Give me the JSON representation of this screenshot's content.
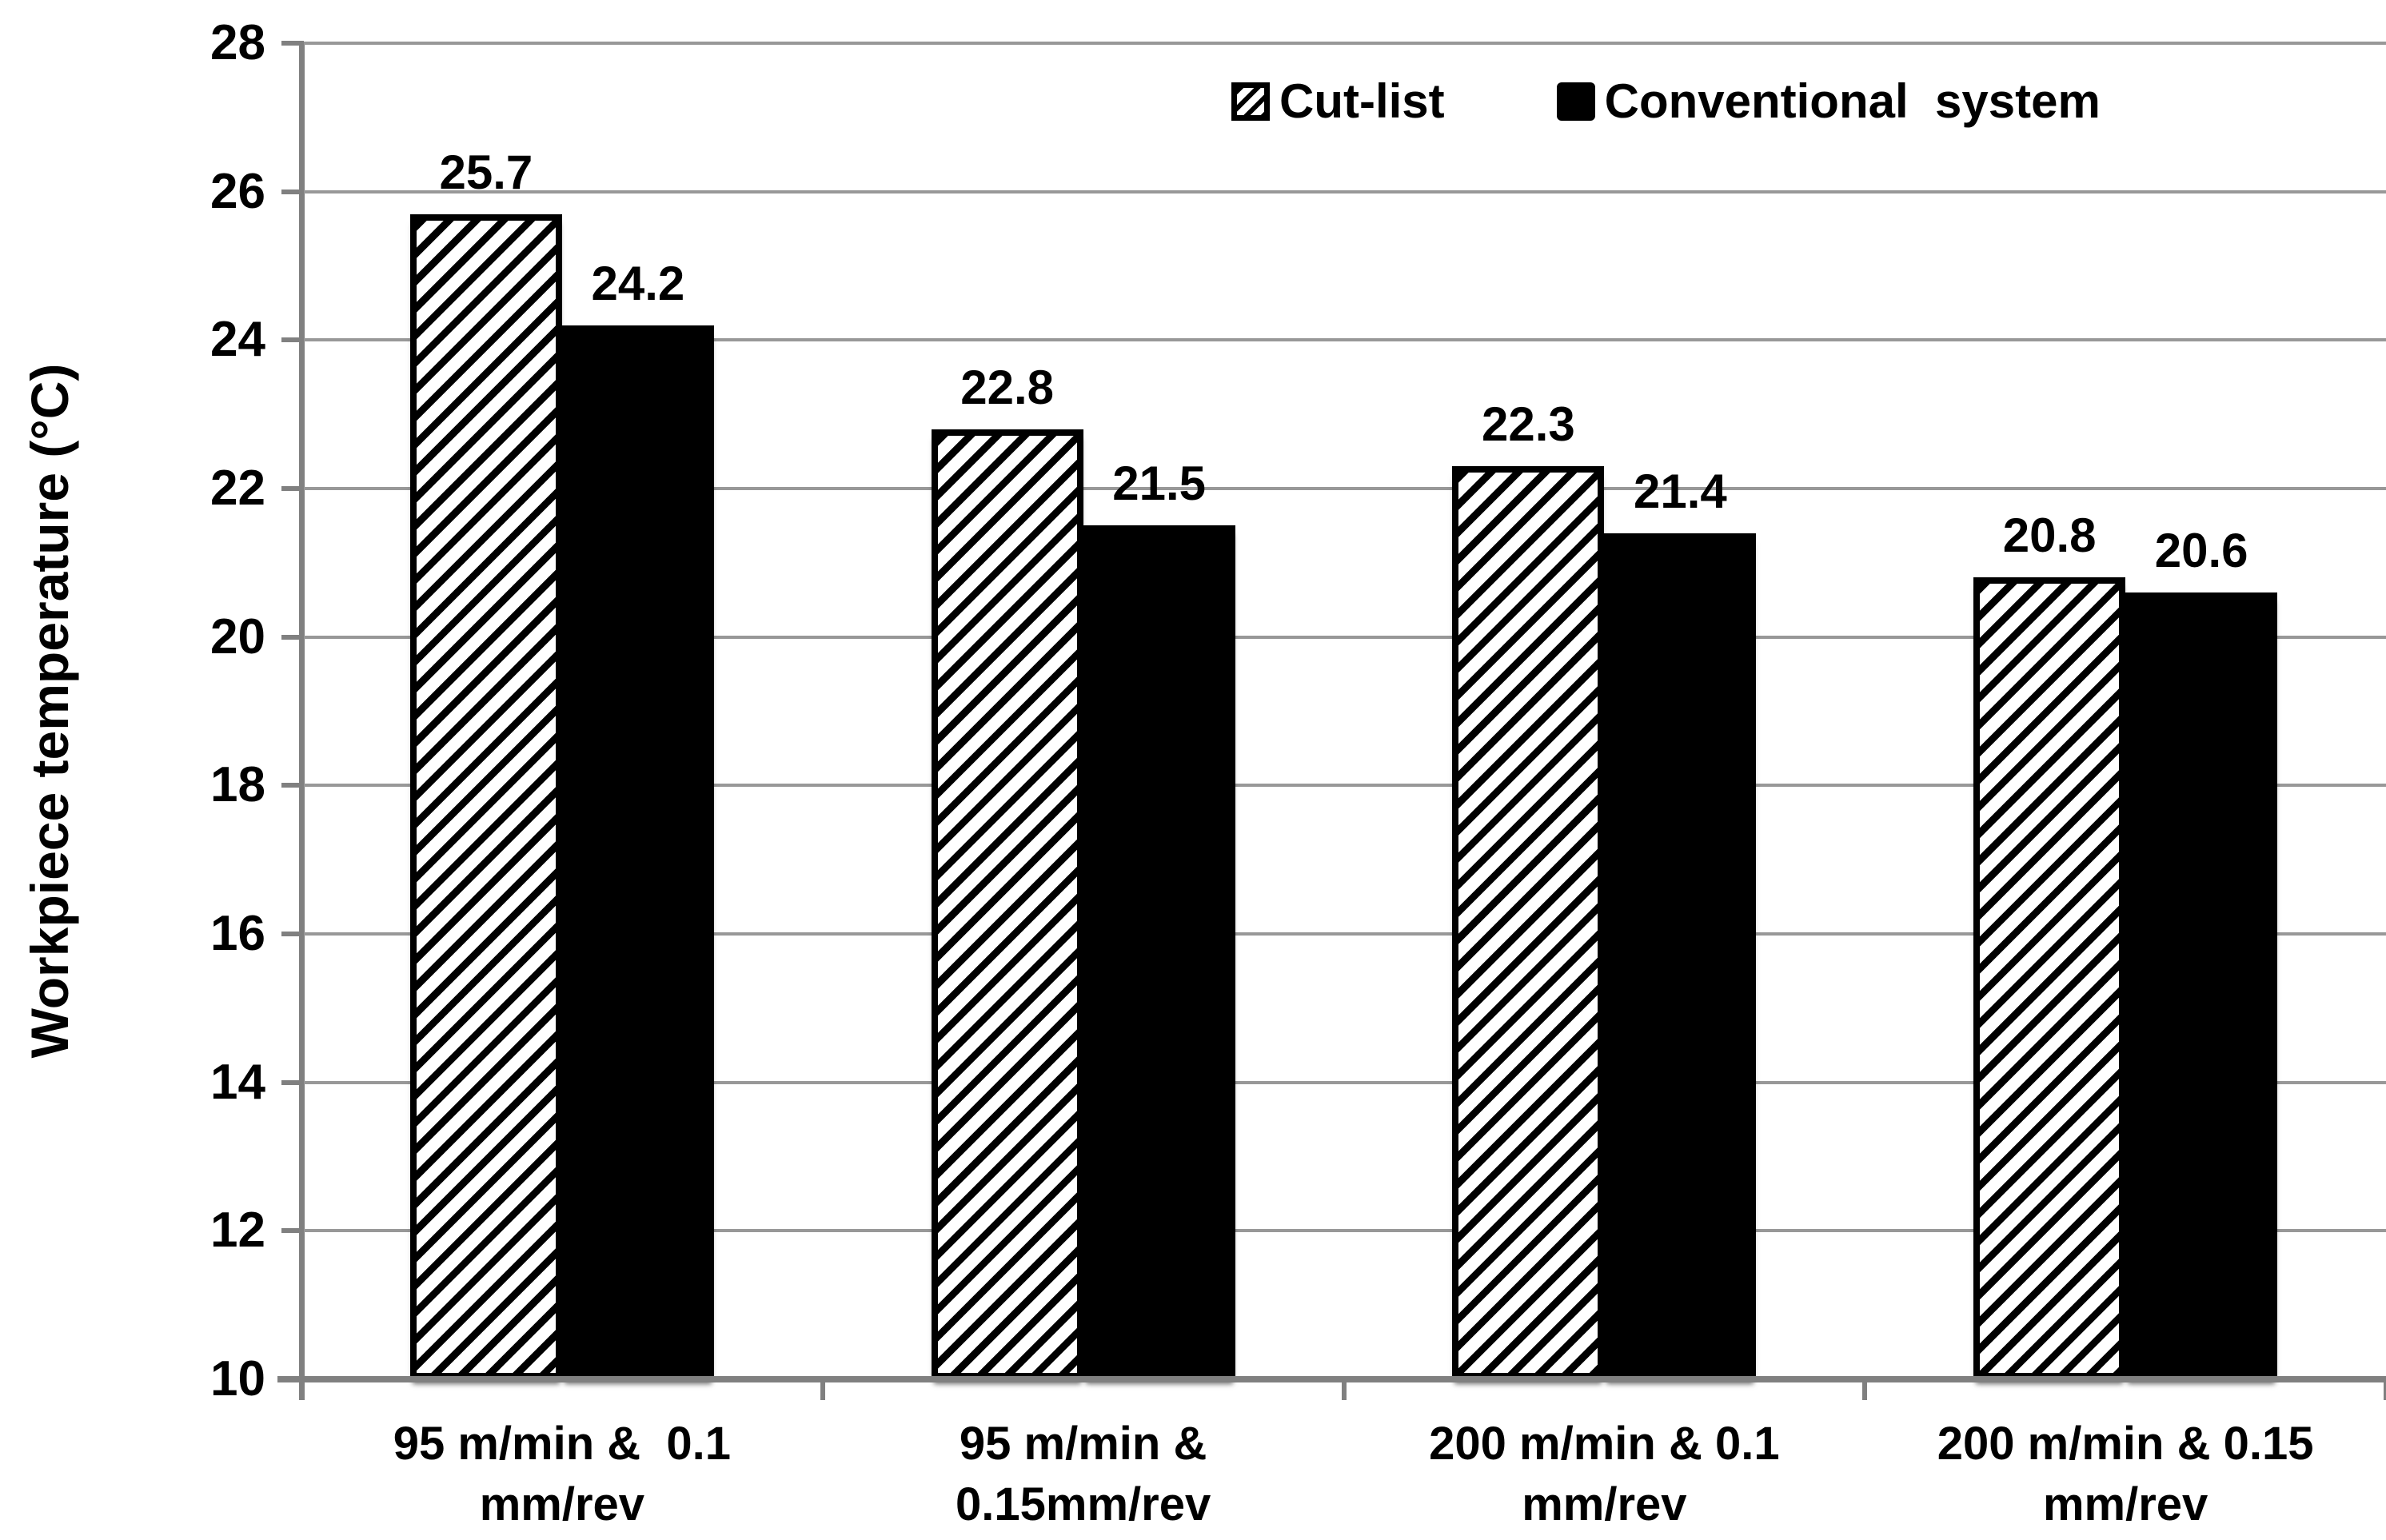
{
  "figure": {
    "background": "#ffffff"
  },
  "y_axis": {
    "title": "Workpiece temperature (°C)"
  },
  "chart_data": {
    "type": "bar",
    "title": "",
    "xlabel": "",
    "ylabel": "Workpiece temperature (°C)",
    "ylim": [
      10,
      28
    ],
    "ytick_step": 2,
    "yticks": [
      28,
      26,
      24,
      22,
      20,
      18,
      16,
      14,
      12,
      10
    ],
    "grid": true,
    "legend_position": "top",
    "categories": [
      "95 m/min & 0.1 mm/rev",
      "95 m/min & 0.15mm/rev",
      "200 m/min & 0.1 mm/rev",
      "200 m/min & 0.15 mm/rev"
    ],
    "category_label_lines": [
      [
        "95 m/min &  0.1",
        "mm/rev"
      ],
      [
        "95 m/min &",
        "0.15mm/rev"
      ],
      [
        "200 m/min & 0.1",
        "mm/rev"
      ],
      [
        "200 m/min & 0.15",
        "mm/rev"
      ]
    ],
    "series": [
      {
        "name": "Cut-list",
        "style": "hatched",
        "values": [
          25.7,
          22.8,
          22.3,
          20.8
        ]
      },
      {
        "name": "Conventional  system",
        "style": "solid",
        "values": [
          24.2,
          21.5,
          21.4,
          20.6
        ]
      }
    ],
    "value_labels": [
      [
        "25.7",
        "22.8",
        "22.3",
        "20.8"
      ],
      [
        "24.2",
        "21.5",
        "21.4",
        "20.6"
      ]
    ],
    "colors": {
      "bar_fill": "#000000",
      "hatch_background": "#ffffff",
      "gridline": "#989898",
      "axis": "#808080",
      "text": "#000000"
    }
  }
}
